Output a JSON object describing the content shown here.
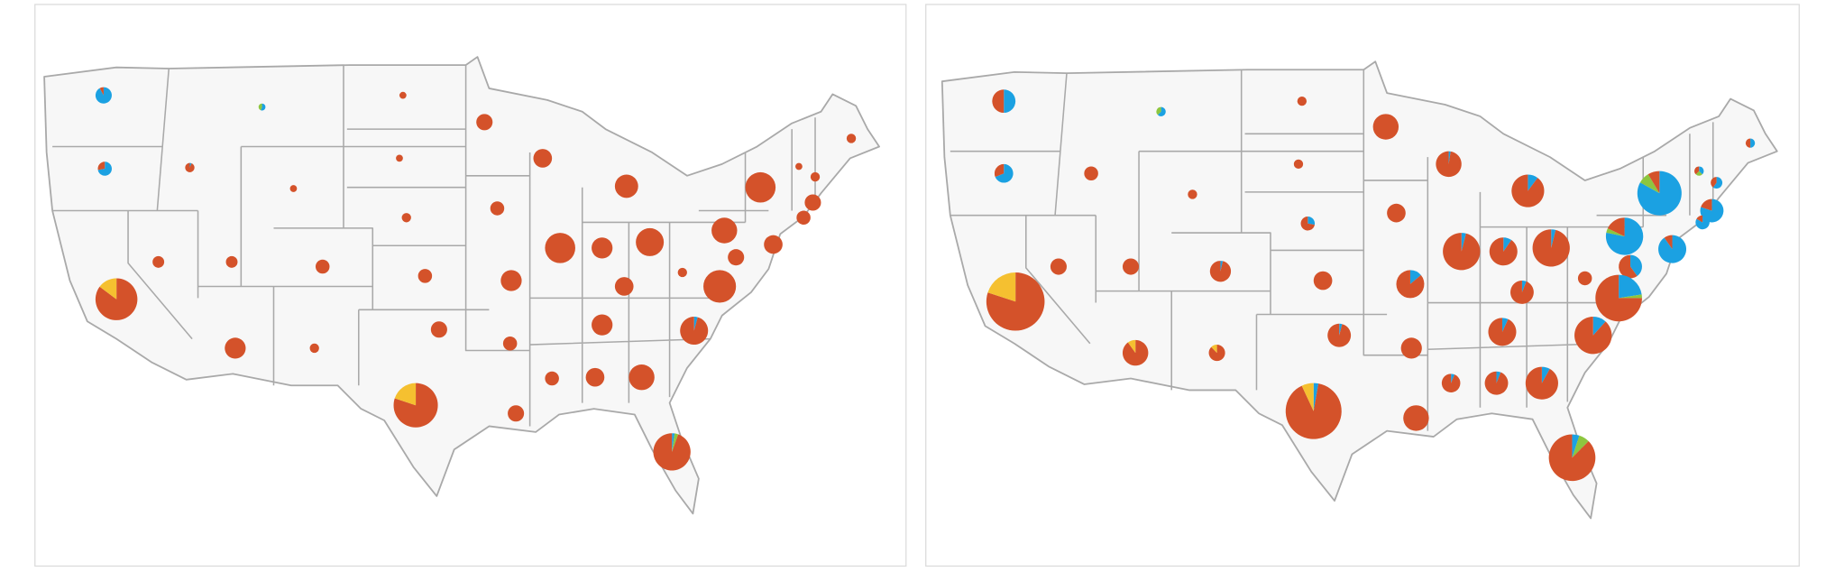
{
  "colors": [
    "#1ba1e2",
    "#8dc63f",
    "#d4522a",
    "#f5c030"
  ],
  "maps": [
    {
      "pies": [
        [
          45,
          0,
          4,
          0
        ],
        [
          5,
          4,
          0,
          0
        ],
        [
          26,
          0,
          10,
          0
        ],
        [
          1,
          0,
          15,
          0
        ],
        [
          0,
          0,
          9,
          0
        ],
        [
          0,
          0,
          9,
          0
        ],
        [
          0,
          0,
          9,
          0
        ],
        [
          0,
          0,
          16,
          0
        ],
        [
          0,
          0,
          49,
          0
        ],
        [
          0,
          0,
          64,
          0
        ],
        [
          0,
          0,
          100,
          0
        ],
        [
          0,
          0,
          16,
          0
        ],
        [
          0,
          0,
          169,
          0
        ],
        [
          0,
          0,
          9,
          0
        ],
        [
          0,
          0,
          16,
          0
        ],
        [
          0,
          0,
          49,
          0
        ],
        [
          0,
          0,
          36,
          0
        ],
        [
          0,
          0,
          25,
          0
        ],
        [
          0,
          0,
          25,
          0
        ],
        [
          0,
          0,
          36,
          0
        ],
        [
          0,
          0,
          36,
          0
        ],
        [
          0,
          0,
          36,
          0
        ],
        [
          0,
          0,
          169,
          0
        ],
        [
          0,
          0,
          81,
          0
        ],
        [
          0,
          0,
          144,
          0
        ],
        [
          0,
          0,
          121,
          0
        ],
        [
          0,
          0,
          64,
          0
        ],
        [
          0,
          0,
          49,
          0
        ],
        [
          0,
          0,
          196,
          0
        ],
        [
          0,
          0,
          16,
          0
        ],
        [
          0,
          0,
          276,
          48
        ],
        [
          0,
          0,
          81,
          0
        ],
        [
          0,
          0,
          64,
          0
        ],
        [
          0,
          0,
          81,
          0
        ],
        [
          6,
          0,
          138,
          0
        ],
        [
          0,
          0,
          81,
          0
        ],
        [
          0,
          0,
          16,
          0
        ],
        [
          0,
          0,
          49,
          0
        ],
        [
          0,
          0,
          36,
          0
        ],
        [
          0,
          0,
          36,
          0
        ],
        [
          0,
          0,
          64,
          0
        ],
        [
          0,
          0,
          121,
          0
        ],
        [
          0,
          0,
          289,
          72
        ],
        [
          0,
          0,
          49,
          0
        ],
        [
          6,
          8,
          242,
          0
        ]
      ]
    },
    {
      "pies": [
        [
          50,
          0,
          50,
          0
        ],
        [
          10,
          6,
          0,
          0
        ],
        [
          44,
          0,
          20,
          0
        ],
        [
          0,
          0,
          36,
          0
        ],
        [
          0,
          0,
          16,
          0
        ],
        [
          0,
          0,
          16,
          0
        ],
        [
          0,
          0,
          16,
          0
        ],
        [
          10,
          0,
          26,
          0
        ],
        [
          0,
          0,
          121,
          0
        ],
        [
          3,
          0,
          118,
          0
        ],
        [
          20,
          0,
          176,
          0
        ],
        [
          8,
          0,
          8,
          0
        ],
        [
          300,
          30,
          31,
          0
        ],
        [
          6,
          4,
          6,
          0
        ],
        [
          15,
          0,
          10,
          0
        ],
        [
          80,
          0,
          20,
          0
        ],
        [
          30,
          0,
          6,
          0
        ],
        [
          0,
          0,
          49,
          0
        ],
        [
          0,
          0,
          49,
          0
        ],
        [
          3,
          0,
          78,
          0
        ],
        [
          0,
          0,
          64,
          0
        ],
        [
          0,
          0,
          64,
          0
        ],
        [
          10,
          0,
          246,
          0
        ],
        [
          14,
          0,
          130,
          0
        ],
        [
          10,
          0,
          246,
          0
        ],
        [
          200,
          10,
          46,
          0
        ],
        [
          130,
          0,
          14,
          0
        ],
        [
          40,
          0,
          60,
          0
        ],
        [
          90,
          10,
          300,
          0
        ],
        [
          0,
          0,
          36,
          0
        ],
        [
          0,
          0,
          500,
          125
        ],
        [
          20,
          0,
          124,
          0
        ],
        [
          6,
          0,
          94,
          0
        ],
        [
          10,
          0,
          134,
          0
        ],
        [
          30,
          0,
          226,
          0
        ],
        [
          0,
          0,
          109,
          12
        ],
        [
          0,
          0,
          43,
          6
        ],
        [
          4,
          0,
          96,
          0
        ],
        [
          0,
          0,
          81,
          0
        ],
        [
          4,
          0,
          60,
          0
        ],
        [
          6,
          0,
          94,
          0
        ],
        [
          16,
          0,
          180,
          0
        ],
        [
          16,
          0,
          520,
          40
        ],
        [
          0,
          0,
          121,
          0
        ],
        [
          20,
          30,
          350,
          0
        ]
      ]
    }
  ]
}
